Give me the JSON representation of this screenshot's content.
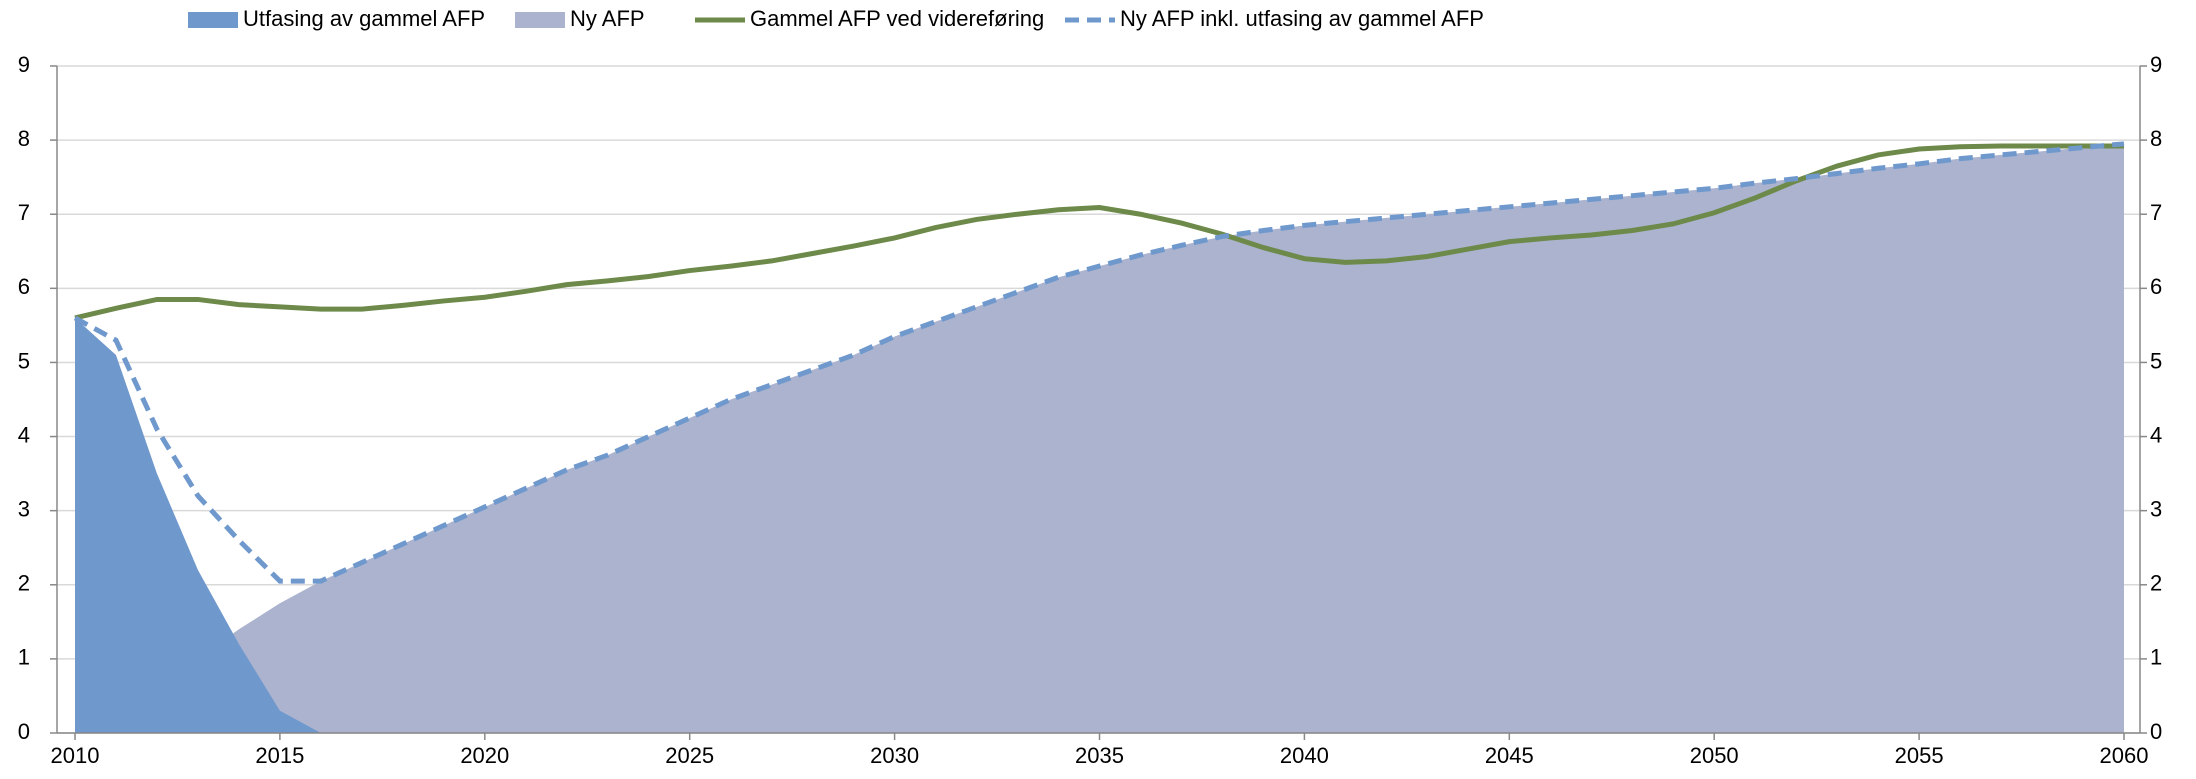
{
  "chart_data": {
    "type": "area",
    "x": [
      2010,
      2011,
      2012,
      2013,
      2014,
      2015,
      2016,
      2017,
      2018,
      2019,
      2020,
      2021,
      2022,
      2023,
      2024,
      2025,
      2026,
      2027,
      2028,
      2029,
      2030,
      2031,
      2032,
      2033,
      2034,
      2035,
      2036,
      2037,
      2038,
      2039,
      2040,
      2041,
      2042,
      2043,
      2044,
      2045,
      2046,
      2047,
      2048,
      2049,
      2050,
      2051,
      2052,
      2053,
      2054,
      2055,
      2056,
      2057,
      2058,
      2059,
      2060
    ],
    "series": [
      {
        "name": "Utfasing av gammel AFP",
        "color": "#6f98cd",
        "kind": "area",
        "values": [
          5.6,
          5.1,
          3.5,
          2.2,
          1.2,
          0.3,
          0,
          0,
          0,
          0,
          0,
          0,
          0,
          0,
          0,
          0,
          0,
          0,
          0,
          0,
          0,
          0,
          0,
          0,
          0,
          0,
          0,
          0,
          0,
          0,
          0,
          0,
          0,
          0,
          0,
          0,
          0,
          0,
          0,
          0,
          0,
          0,
          0,
          0,
          0,
          0,
          0,
          0,
          0,
          0,
          0
        ]
      },
      {
        "name": "Ny AFP",
        "color": "#abb3cf",
        "kind": "area",
        "values": [
          0,
          0.2,
          0.6,
          1.0,
          1.4,
          1.75,
          2.05,
          2.3,
          2.55,
          2.8,
          3.05,
          3.3,
          3.55,
          3.75,
          4.0,
          4.25,
          4.5,
          4.7,
          4.9,
          5.1,
          5.35,
          5.55,
          5.75,
          5.95,
          6.15,
          6.3,
          6.45,
          6.58,
          6.7,
          6.78,
          6.85,
          6.9,
          6.95,
          7.0,
          7.05,
          7.1,
          7.15,
          7.2,
          7.25,
          7.3,
          7.35,
          7.42,
          7.48,
          7.55,
          7.62,
          7.68,
          7.75,
          7.8,
          7.85,
          7.9,
          7.95
        ]
      },
      {
        "name": "Gammel AFP ved videreføring",
        "color": "#6d8a4a",
        "kind": "line",
        "values": [
          5.6,
          5.73,
          5.85,
          5.85,
          5.78,
          5.75,
          5.72,
          5.72,
          5.77,
          5.83,
          5.88,
          5.96,
          6.05,
          6.1,
          6.16,
          6.24,
          6.3,
          6.37,
          6.47,
          6.57,
          6.68,
          6.82,
          6.93,
          7.0,
          7.06,
          7.09,
          7.0,
          6.88,
          6.73,
          6.55,
          6.4,
          6.35,
          6.37,
          6.43,
          6.53,
          6.63,
          6.68,
          6.72,
          6.78,
          6.87,
          7.02,
          7.22,
          7.45,
          7.65,
          7.8,
          7.88,
          7.91,
          7.92,
          7.92,
          7.92,
          7.92
        ]
      },
      {
        "name": "Ny AFP inkl. utfasing av gammel AFP",
        "color": "#6f98cd",
        "kind": "dashed",
        "values": [
          5.6,
          5.3,
          4.1,
          3.2,
          2.6,
          2.05,
          2.05,
          2.3,
          2.55,
          2.8,
          3.05,
          3.3,
          3.55,
          3.75,
          4.0,
          4.25,
          4.5,
          4.7,
          4.9,
          5.1,
          5.35,
          5.55,
          5.75,
          5.95,
          6.15,
          6.3,
          6.45,
          6.58,
          6.7,
          6.78,
          6.85,
          6.9,
          6.95,
          7.0,
          7.05,
          7.1,
          7.15,
          7.2,
          7.25,
          7.3,
          7.35,
          7.42,
          7.48,
          7.55,
          7.62,
          7.68,
          7.75,
          7.8,
          7.85,
          7.9,
          7.95
        ]
      }
    ],
    "xlim": [
      2010,
      2060
    ],
    "xticks": [
      2010,
      2015,
      2020,
      2025,
      2030,
      2035,
      2040,
      2045,
      2050,
      2055,
      2060
    ],
    "ylim": [
      0,
      9
    ],
    "yticks": [
      0,
      1,
      2,
      3,
      4,
      5,
      6,
      7,
      8,
      9
    ],
    "y2lim": [
      0,
      9
    ],
    "y2ticks": [
      0,
      1,
      2,
      3,
      4,
      5,
      6,
      7,
      8,
      9
    ],
    "grid": true,
    "legend": "top"
  }
}
